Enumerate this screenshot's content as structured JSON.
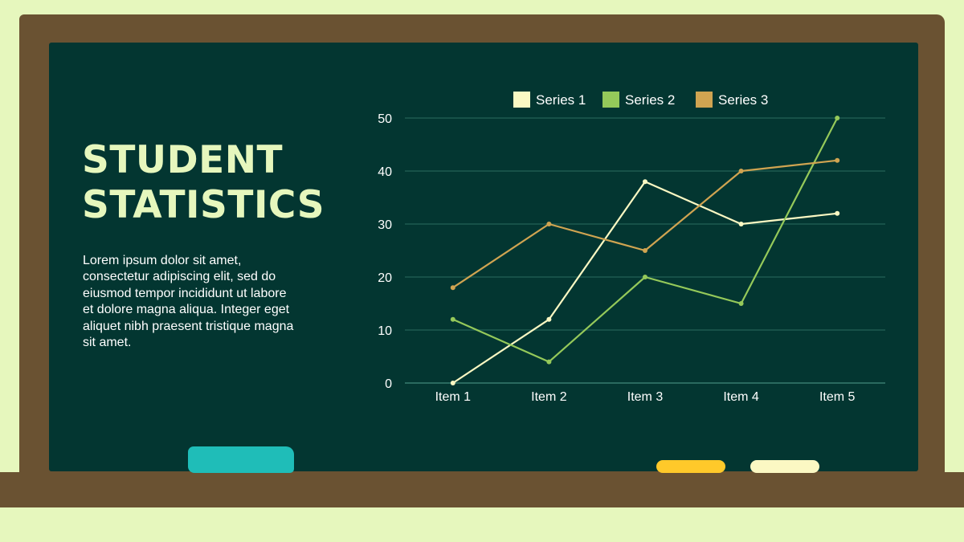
{
  "slide": {
    "title_line1": "STUDENT",
    "title_line2": "STATISTICS",
    "body": "Lorem ipsum dolor sit amet, consectetur adipiscing elit, sed do eiusmod tempor incididunt ut labore et dolore magna aliqua. Integer eget aliquet nibh praesent tristique magna sit amet."
  },
  "colors": {
    "background": "#e6f7bd",
    "frame": "#6a5232",
    "board": "#033631",
    "title": "#e6f7bd",
    "eraser": "#1fbdb8",
    "chalk_yellow": "#ffc92a",
    "chalk_cream": "#fbf8c3"
  },
  "chart_data": {
    "type": "line",
    "categories": [
      "Item 1",
      "Item 2",
      "Item 3",
      "Item 4",
      "Item 5"
    ],
    "series": [
      {
        "name": "Series 1",
        "color": "#fbf8c3",
        "values": [
          0,
          12,
          38,
          30,
          32
        ]
      },
      {
        "name": "Series 2",
        "color": "#95c95a",
        "values": [
          12,
          4,
          20,
          15,
          50
        ]
      },
      {
        "name": "Series 3",
        "color": "#d0a451",
        "values": [
          18,
          30,
          25,
          40,
          42
        ]
      }
    ],
    "ylim": [
      0,
      50
    ],
    "yticks": [
      0,
      10,
      20,
      30,
      40,
      50
    ],
    "grid": true,
    "legend": "top-center"
  }
}
